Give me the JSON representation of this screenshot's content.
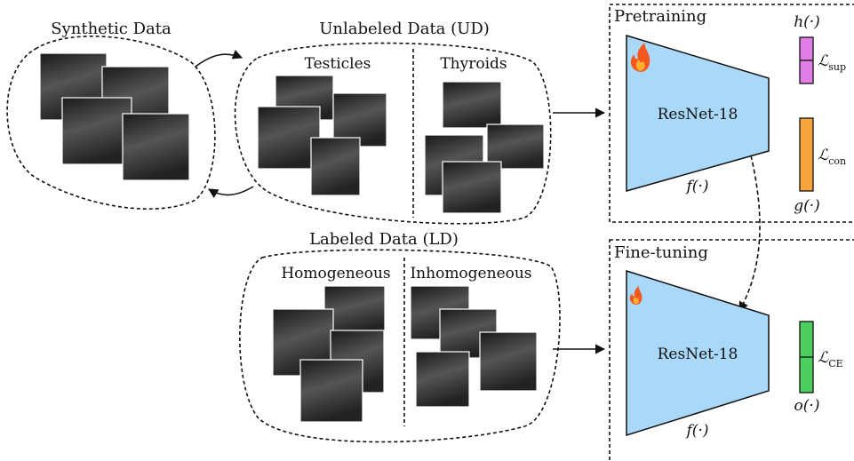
{
  "synthetic": {
    "title": "Synthetic Data"
  },
  "unlabeled": {
    "title": "Unlabeled Data (UD)",
    "groups": [
      "Testicles",
      "Thyroids"
    ]
  },
  "labeled": {
    "title": "Labeled Data (LD)",
    "groups": [
      "Homogeneous",
      "Inhomogeneous"
    ]
  },
  "pretraining": {
    "title": "Pretraining",
    "backbone": "ResNet-18",
    "backbone_fn": "f(·)",
    "heads": [
      {
        "fn": "h(·)",
        "loss": "ℒ",
        "sub": "sup"
      },
      {
        "fn": "g(·)",
        "loss": "ℒ",
        "sub": "con"
      }
    ]
  },
  "finetuning": {
    "title": "Fine-tuning",
    "backbone": "ResNet-18",
    "backbone_fn": "f(·)",
    "heads": [
      {
        "fn": "o(·)",
        "loss": "ℒ",
        "sub": "CE"
      }
    ]
  }
}
